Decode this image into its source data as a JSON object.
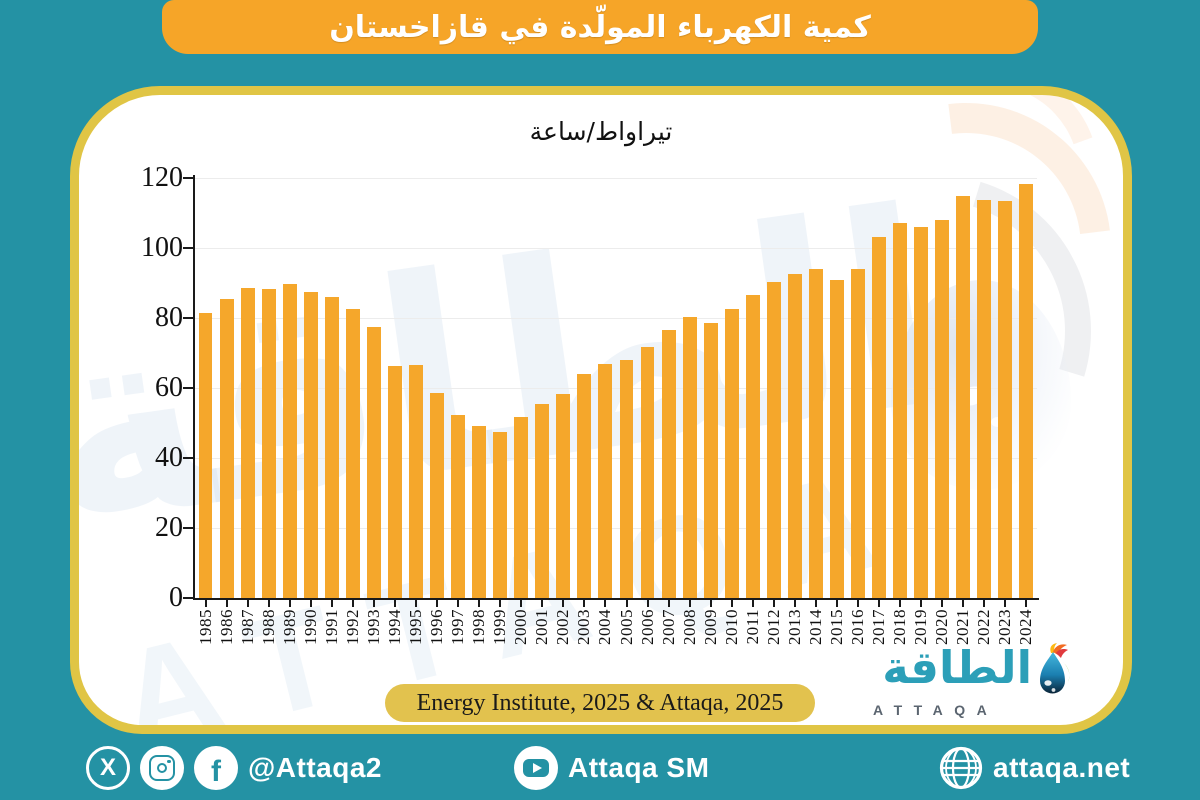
{
  "colors": {
    "background_teal": "#2492A4",
    "card_border_gold": "#E0C545",
    "banner_orange": "#F6A528",
    "bar_orange": "#F5A72B",
    "source_pill_gold": "#E2C24E",
    "logo_teal": "#2C9FB8"
  },
  "banner": {
    "title": "كمية الكهرباء المولّدة في قازاخستان"
  },
  "chart_data": {
    "type": "bar",
    "title": "تيراواط/ساعة",
    "categories": [
      "1985",
      "1986",
      "1987",
      "1988",
      "1989",
      "1990",
      "1991",
      "1992",
      "1993",
      "1994",
      "1995",
      "1996",
      "1997",
      "1998",
      "1999",
      "2000",
      "2001",
      "2002",
      "2003",
      "2004",
      "2005",
      "2006",
      "2007",
      "2008",
      "2009",
      "2010",
      "2011",
      "2012",
      "2013",
      "2014",
      "2015",
      "2016",
      "2017",
      "2018",
      "2019",
      "2020",
      "2021",
      "2022",
      "2023",
      "2024"
    ],
    "values": [
      81.3,
      85.4,
      88.5,
      88.4,
      89.7,
      87.4,
      86.0,
      82.7,
      77.4,
      66.4,
      66.7,
      58.7,
      52.2,
      49.2,
      47.5,
      51.6,
      55.4,
      58.3,
      63.9,
      66.9,
      67.9,
      71.7,
      76.6,
      80.3,
      78.7,
      82.6,
      86.6,
      90.2,
      92.6,
      94.1,
      91.0,
      94.1,
      103.1,
      107.1,
      106.0,
      108.1,
      114.8,
      113.8,
      113.5,
      118.4
    ],
    "xlabel": "",
    "ylabel": "",
    "ylim": [
      0,
      120
    ],
    "yticks": [
      0,
      20,
      40,
      60,
      80,
      100,
      120
    ],
    "grid": true,
    "legend_position": "none",
    "bar_color": "#F5A72B"
  },
  "source": {
    "label": "Energy Institute, 2025 & Attaqa, 2025"
  },
  "logo": {
    "arabic": "الطاقة",
    "latin": "ATTAQA"
  },
  "watermark": {
    "arabic": "الطاقة",
    "latin": "ATTAQA"
  },
  "footer": {
    "social_handle": "@Attaqa2",
    "youtube_label": "Attaqa SM",
    "website": "attaqa.net"
  }
}
